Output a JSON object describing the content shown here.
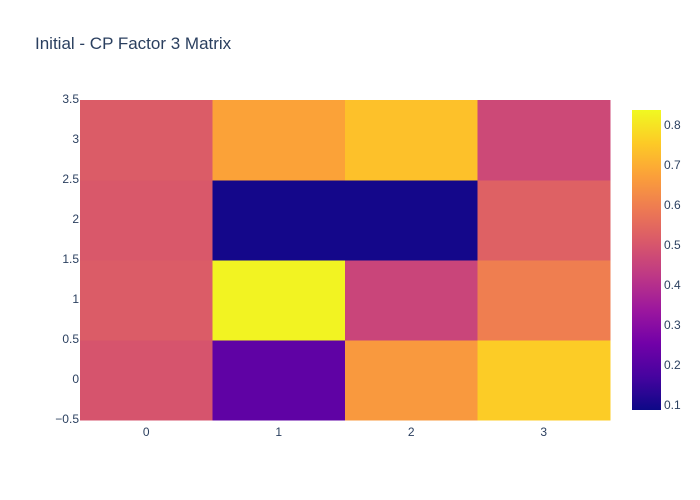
{
  "chart_data": {
    "type": "heatmap",
    "title": "Initial - CP Factor 3 Matrix",
    "xlabel": "",
    "ylabel": "",
    "x": [
      0,
      1,
      2,
      3
    ],
    "y": [
      0,
      1,
      2,
      3
    ],
    "x_tick_labels": [
      "0",
      "1",
      "2",
      "3"
    ],
    "y_tick_labels": [
      "−0.5",
      "0",
      "0.5",
      "1",
      "1.5",
      "2",
      "2.5",
      "3",
      "3.5"
    ],
    "y_tick_values": [
      -0.5,
      0,
      0.5,
      1,
      1.5,
      2,
      2.5,
      3,
      3.5
    ],
    "xlim": [
      -0.5,
      3.5
    ],
    "ylim": [
      -0.5,
      3.5
    ],
    "z": [
      [
        0.5,
        0.22,
        0.66,
        0.76
      ],
      [
        0.52,
        0.83,
        0.46,
        0.6
      ],
      [
        0.51,
        0.1,
        0.1,
        0.53
      ],
      [
        0.52,
        0.68,
        0.74,
        0.47
      ]
    ],
    "zmin": 0.09,
    "zmax": 0.84,
    "colorscale": "plasma",
    "colorscale_stops": [
      "#0d0887",
      "#46039f",
      "#7201a8",
      "#9c179e",
      "#bd3786",
      "#d8576b",
      "#ed7953",
      "#fb9f3a",
      "#fdca26",
      "#f0f921"
    ],
    "colorbar_ticks": [
      "0.1",
      "0.2",
      "0.3",
      "0.4",
      "0.5",
      "0.6",
      "0.7",
      "0.8"
    ],
    "colorbar_tick_values": [
      0.1,
      0.2,
      0.3,
      0.4,
      0.5,
      0.6,
      0.7,
      0.8
    ],
    "grid": false,
    "legend": "colorbar-right"
  }
}
